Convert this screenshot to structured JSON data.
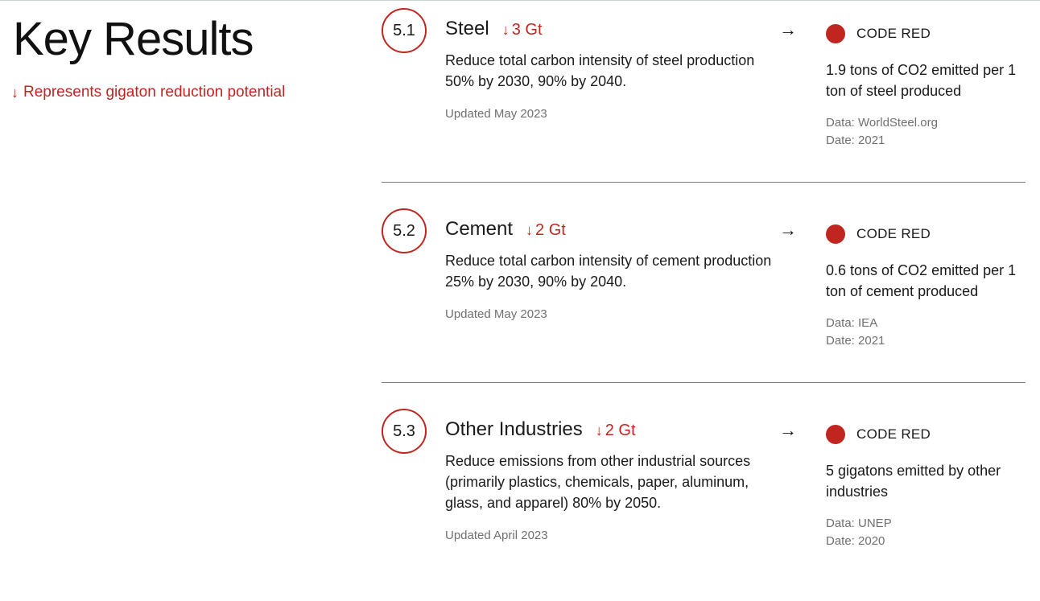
{
  "page": {
    "title": "Key Results",
    "legend": {
      "arrow": "↓",
      "text": "Represents gigaton reduction potential"
    }
  },
  "colors": {
    "accent": "#c0261f",
    "text": "#1a1a1a",
    "muted": "#707070",
    "divider": "#7c7c7c"
  },
  "results": [
    {
      "number": "5.1",
      "title": "Steel",
      "reduction": "3 Gt",
      "goal": "Reduce total carbon intensity of steel production 50% by 2030, 90% by 2040.",
      "updated": "Updated May 2023",
      "arrow": "→",
      "status": "CODE RED",
      "status_icon": "red-circle",
      "metric": "1.9 tons of CO2 emitted per 1 ton of steel produced",
      "source": "Data: WorldSteel.org",
      "date": "Date: 2021"
    },
    {
      "number": "5.2",
      "title": "Cement",
      "reduction": "2 Gt",
      "goal": "Reduce total carbon intensity of cement production 25% by 2030, 90% by 2040.",
      "updated": "Updated May 2023",
      "arrow": "→",
      "status": "CODE RED",
      "status_icon": "red-circle",
      "metric": "0.6 tons of CO2 emitted per 1 ton of cement produced",
      "source": "Data: IEA",
      "date": "Date: 2021"
    },
    {
      "number": "5.3",
      "title": "Other Industries",
      "reduction": "2 Gt",
      "goal": "Reduce emissions from other industrial sources (primarily plastics, chemicals, paper, aluminum, glass, and apparel) 80% by 2050.",
      "updated": "Updated April 2023",
      "arrow": "→",
      "status": "CODE RED",
      "status_icon": "red-circle",
      "metric": "5 gigatons emitted by other industries",
      "source": "Data: UNEP",
      "date": "Date: 2020"
    }
  ]
}
